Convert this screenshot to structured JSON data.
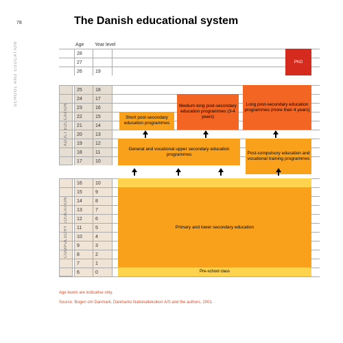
{
  "page_number": "78",
  "side_label": "SCHOOL AND EDUCATION",
  "title": "The Danish educational system",
  "columns": {
    "age": "Age",
    "year": "Year level"
  },
  "rows_top": [
    {
      "age": "28",
      "year": ""
    },
    {
      "age": "27",
      "year": ""
    },
    {
      "age": "26",
      "year": "19"
    }
  ],
  "rows_adult": [
    {
      "age": "25",
      "year": "18"
    },
    {
      "age": "24",
      "year": "17"
    },
    {
      "age": "23",
      "year": "16"
    },
    {
      "age": "22",
      "year": "15"
    },
    {
      "age": "21",
      "year": "14"
    },
    {
      "age": "20",
      "year": "13"
    }
  ],
  "rows_upper": [
    {
      "age": "19",
      "year": "12"
    },
    {
      "age": "18",
      "year": "11"
    },
    {
      "age": "17",
      "year": "10"
    }
  ],
  "rows_comp": [
    {
      "age": "16",
      "year": "10"
    },
    {
      "age": "15",
      "year": "9"
    },
    {
      "age": "14",
      "year": "8"
    },
    {
      "age": "13",
      "year": "7"
    },
    {
      "age": "12",
      "year": "6"
    },
    {
      "age": "11",
      "year": "5"
    },
    {
      "age": "10",
      "year": "4"
    },
    {
      "age": "9",
      "year": "3"
    },
    {
      "age": "8",
      "year": "2"
    },
    {
      "age": "7",
      "year": "1"
    },
    {
      "age": "6",
      "year": "0"
    }
  ],
  "sections": {
    "adult": "ADULT EDUCATION",
    "compulsory": "COMPULSORY EDUCATION"
  },
  "blocks": {
    "phd": {
      "label": "PhD",
      "bg": "#d52b1e",
      "fg": "#ffffff"
    },
    "long_post": {
      "label": "Long post-secondary education programmes (more than 4 years)",
      "bg": "#f26522"
    },
    "medium": {
      "label": "Medium-long post-secondary education programmes (3-4 years)",
      "bg": "#f26522"
    },
    "short": {
      "label": "Short post-secondary education programmes",
      "bg": "#f9a11b"
    },
    "general_upper": {
      "label": "General and vocational upper secondary education programmes",
      "bg": "#f9a11b"
    },
    "postcomp": {
      "label": "Post-compulsory education and vocational training programmes",
      "bg": "#f9a11b"
    },
    "primary": {
      "label": "Primary and lower secondary education",
      "bg": "#f9a11b"
    },
    "preschool": {
      "label": "Pre-school class",
      "bg": "#ffd34e"
    },
    "comp_year10": {
      "bg": "#ffd34e"
    }
  },
  "colors": {
    "adult_band": "#e6ddd3",
    "comp_band": "#f0e4d6",
    "grid": "#aaaaaa"
  },
  "footnote1": "Age levels are indicative only.",
  "footnote2": "Source: Bogen om Danmark. Danmarks Nationalleksikon A/S and the authors, 2001."
}
